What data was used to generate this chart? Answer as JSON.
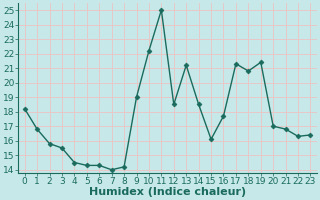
{
  "x": [
    0,
    1,
    2,
    3,
    4,
    5,
    6,
    7,
    8,
    9,
    10,
    11,
    12,
    13,
    14,
    15,
    16,
    17,
    18,
    19,
    20,
    21,
    22,
    23
  ],
  "y": [
    18.2,
    16.8,
    15.8,
    15.5,
    14.5,
    14.3,
    14.3,
    14.0,
    14.2,
    19.0,
    22.2,
    25.0,
    18.5,
    21.2,
    18.5,
    16.1,
    17.7,
    21.3,
    20.8,
    21.4,
    17.0,
    16.8,
    16.3,
    16.4
  ],
  "line_color": "#1a6b5e",
  "marker": "D",
  "marker_size": 2.5,
  "xlabel": "Humidex (Indice chaleur)",
  "xlabel_fontsize": 8,
  "xlim": [
    -0.5,
    23.5
  ],
  "ylim": [
    13.8,
    25.5
  ],
  "yticks": [
    14,
    15,
    16,
    17,
    18,
    19,
    20,
    21,
    22,
    23,
    24,
    25
  ],
  "xticks": [
    0,
    1,
    2,
    3,
    4,
    5,
    6,
    7,
    8,
    9,
    10,
    11,
    12,
    13,
    14,
    15,
    16,
    17,
    18,
    19,
    20,
    21,
    22,
    23
  ],
  "background_color": "#c6e8e8",
  "grid_color": "#e8c8c8",
  "tick_label_fontsize": 6.5
}
